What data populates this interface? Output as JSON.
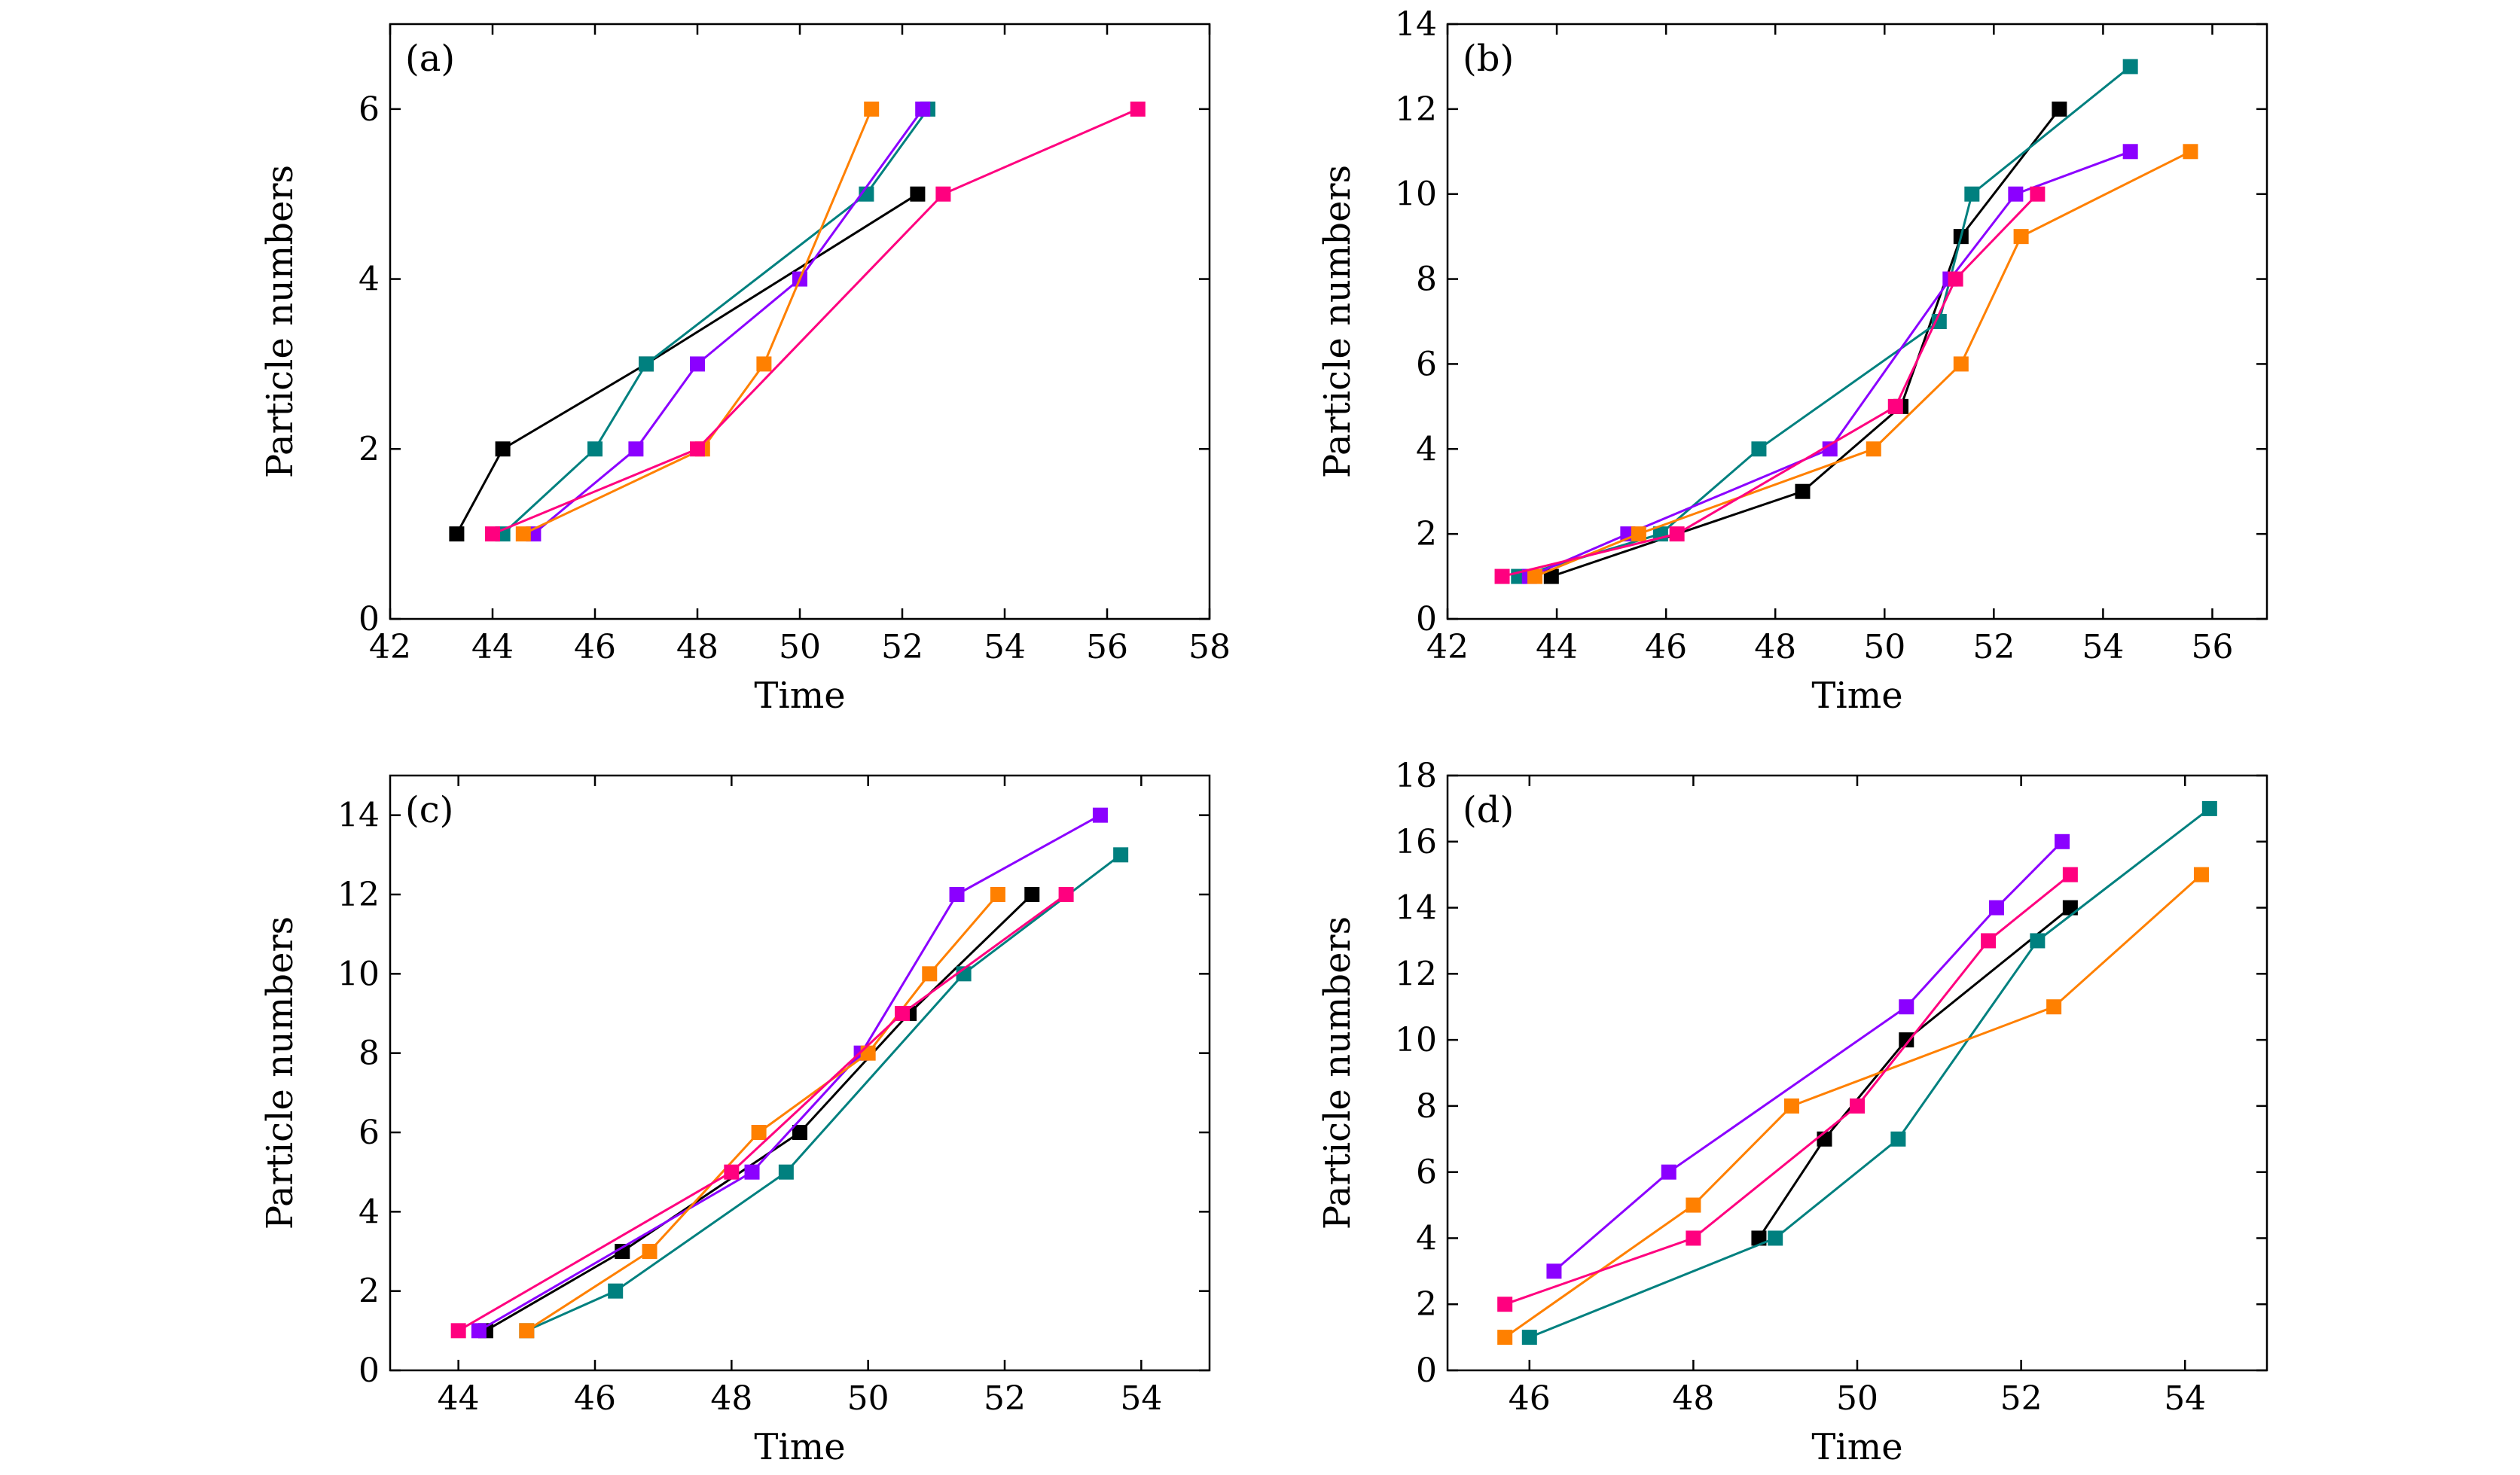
{
  "colors": {
    "black": "#000000",
    "teal": "#00807F",
    "purple": "#8B00FF",
    "orange": "#FF8000",
    "magenta": "#FF007F"
  },
  "chart_data": [
    {
      "type": "line",
      "panel_label": "(a)",
      "xlabel": "Time",
      "ylabel": "Particle numbers",
      "xlim": [
        42,
        58
      ],
      "ylim": [
        0,
        7
      ],
      "xticks": [
        42,
        44,
        46,
        48,
        50,
        52,
        54,
        56,
        58
      ],
      "yticks": [
        0,
        2,
        4,
        6
      ],
      "marker": "square",
      "series": [
        {
          "color": "#000000",
          "x": [
            43.3,
            44.2,
            47.0,
            52.3
          ],
          "y": [
            1,
            2,
            3,
            5
          ]
        },
        {
          "color": "#00807F",
          "x": [
            44.2,
            46.0,
            47.0,
            51.3,
            52.5
          ],
          "y": [
            1,
            2,
            3,
            5,
            6
          ]
        },
        {
          "color": "#8B00FF",
          "x": [
            44.8,
            46.8,
            48.0,
            50.0,
            52.4
          ],
          "y": [
            1,
            2,
            3,
            4,
            6
          ]
        },
        {
          "color": "#FF8000",
          "x": [
            44.6,
            48.1,
            49.3,
            51.4
          ],
          "y": [
            1,
            2,
            3,
            6
          ]
        },
        {
          "color": "#FF007F",
          "x": [
            44.0,
            48.0,
            52.8,
            56.6
          ],
          "y": [
            1,
            2,
            5,
            6
          ]
        }
      ]
    },
    {
      "type": "line",
      "panel_label": "(b)",
      "xlabel": "Time",
      "ylabel": "Particle numbers",
      "xlim": [
        42,
        57
      ],
      "ylim": [
        0,
        14
      ],
      "xticks": [
        42,
        44,
        46,
        48,
        50,
        52,
        54,
        56
      ],
      "yticks": [
        0,
        2,
        4,
        6,
        8,
        10,
        12,
        14
      ],
      "marker": "square",
      "series": [
        {
          "color": "#000000",
          "x": [
            43.9,
            48.5,
            50.3,
            51.4,
            53.2
          ],
          "y": [
            1,
            3,
            5,
            9,
            12
          ]
        },
        {
          "color": "#00807F",
          "x": [
            43.3,
            45.9,
            47.7,
            51.0,
            51.6,
            54.5
          ],
          "y": [
            1,
            2,
            4,
            7,
            10,
            13
          ]
        },
        {
          "color": "#8B00FF",
          "x": [
            43.5,
            45.3,
            49.0,
            51.2,
            52.4,
            54.5
          ],
          "y": [
            1,
            2,
            4,
            8,
            10,
            11
          ]
        },
        {
          "color": "#FF8000",
          "x": [
            43.6,
            45.5,
            49.8,
            51.4,
            52.5,
            55.6
          ],
          "y": [
            1,
            2,
            4,
            6,
            9,
            11
          ]
        },
        {
          "color": "#FF007F",
          "x": [
            43.0,
            46.2,
            50.2,
            51.3,
            52.8
          ],
          "y": [
            1,
            2,
            5,
            8,
            10
          ]
        }
      ]
    },
    {
      "type": "line",
      "panel_label": "(c)",
      "xlabel": "Time",
      "ylabel": "Particle numbers",
      "xlim": [
        43,
        55
      ],
      "ylim": [
        0,
        15
      ],
      "xticks": [
        44,
        46,
        48,
        50,
        52,
        54
      ],
      "yticks": [
        0,
        2,
        4,
        6,
        8,
        10,
        12,
        14
      ],
      "marker": "square",
      "series": [
        {
          "color": "#000000",
          "x": [
            44.4,
            46.4,
            49.0,
            50.6,
            52.4
          ],
          "y": [
            1,
            3,
            6,
            9,
            12
          ]
        },
        {
          "color": "#00807F",
          "x": [
            45.0,
            46.3,
            48.8,
            51.4,
            53.7
          ],
          "y": [
            1,
            2,
            5,
            10,
            13
          ]
        },
        {
          "color": "#8B00FF",
          "x": [
            44.3,
            48.3,
            49.9,
            51.3,
            53.4
          ],
          "y": [
            1,
            5,
            8,
            12,
            14
          ]
        },
        {
          "color": "#FF8000",
          "x": [
            45.0,
            46.8,
            48.4,
            50.0,
            50.9,
            51.9
          ],
          "y": [
            1,
            3,
            6,
            8,
            10,
            12
          ]
        },
        {
          "color": "#FF007F",
          "x": [
            44.0,
            48.0,
            50.5,
            52.9
          ],
          "y": [
            1,
            5,
            9,
            12
          ]
        }
      ]
    },
    {
      "type": "line",
      "panel_label": "(d)",
      "xlabel": "Time",
      "ylabel": "Particle numbers",
      "xlim": [
        45,
        55
      ],
      "ylim": [
        0,
        18
      ],
      "xticks": [
        46,
        48,
        50,
        52,
        54
      ],
      "yticks": [
        0,
        2,
        4,
        6,
        8,
        10,
        12,
        14,
        16,
        18
      ],
      "marker": "square",
      "series": [
        {
          "color": "#000000",
          "x": [
            48.8,
            49.6,
            50.6,
            52.6
          ],
          "y": [
            4,
            7,
            10,
            14
          ]
        },
        {
          "color": "#00807F",
          "x": [
            46.0,
            49.0,
            50.5,
            52.2,
            54.3
          ],
          "y": [
            1,
            4,
            7,
            13,
            17
          ]
        },
        {
          "color": "#8B00FF",
          "x": [
            46.3,
            47.7,
            50.6,
            51.7,
            52.5
          ],
          "y": [
            3,
            6,
            11,
            14,
            16
          ]
        },
        {
          "color": "#FF8000",
          "x": [
            45.7,
            48.0,
            49.2,
            52.4,
            54.2
          ],
          "y": [
            1,
            5,
            8,
            11,
            15
          ]
        },
        {
          "color": "#FF007F",
          "x": [
            45.7,
            48.0,
            50.0,
            51.6,
            52.6
          ],
          "y": [
            2,
            4,
            8,
            13,
            15
          ]
        }
      ]
    }
  ]
}
